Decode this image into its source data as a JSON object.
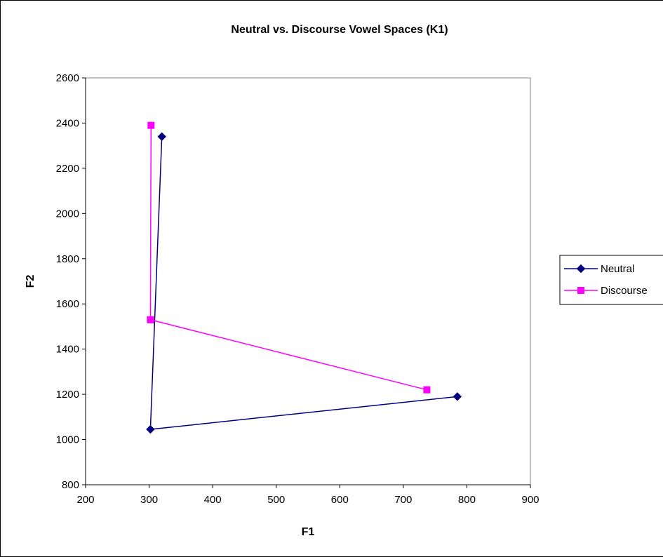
{
  "chart_data": {
    "type": "scatter",
    "title": "Neutral vs. Discourse Vowel Spaces (K1)",
    "xlabel": "F1",
    "ylabel": "F2",
    "xlim": [
      200,
      900
    ],
    "ylim": [
      800,
      2600
    ],
    "xticks": [
      200,
      300,
      400,
      500,
      600,
      700,
      800,
      900
    ],
    "yticks": [
      800,
      1000,
      1200,
      1400,
      1600,
      1800,
      2000,
      2200,
      2400,
      2600
    ],
    "grid": false,
    "legend_position": "right",
    "series": [
      {
        "name": "Neutral",
        "color": "#000080",
        "marker": "diamond",
        "points": [
          {
            "x": 320,
            "y": 2340
          },
          {
            "x": 302,
            "y": 1045
          },
          {
            "x": 785,
            "y": 1190
          }
        ]
      },
      {
        "name": "Discourse",
        "color": "#FF00FF",
        "marker": "square",
        "points": [
          {
            "x": 303,
            "y": 2390
          },
          {
            "x": 302,
            "y": 1530
          },
          {
            "x": 737,
            "y": 1220
          }
        ]
      }
    ]
  }
}
